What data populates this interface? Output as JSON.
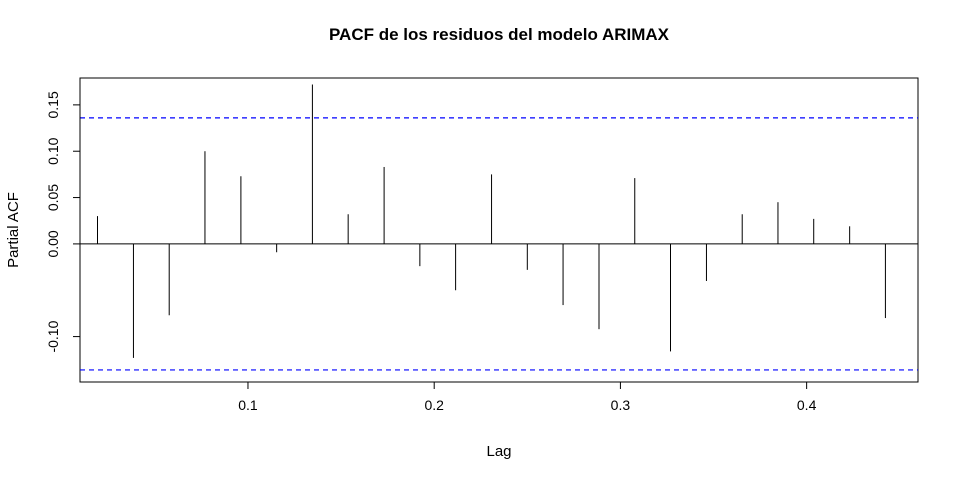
{
  "chart_data": {
    "type": "bar",
    "title": "PACF de los residuos del modelo ARIMAX",
    "xlabel": "Lag",
    "ylabel": "Partial ACF",
    "xlim": [
      0.0098,
      0.4598
    ],
    "ylim": [
      -0.149,
      0.179
    ],
    "x_ticks": [
      0.1,
      0.2,
      0.3,
      0.4
    ],
    "x_tick_labels": [
      "0.1",
      "0.2",
      "0.3",
      "0.4"
    ],
    "y_ticks": [
      -0.1,
      0.0,
      0.05,
      0.1,
      0.15
    ],
    "y_tick_labels": [
      "-0.10",
      "0.00",
      "0.05",
      "0.10",
      "0.15"
    ],
    "zero_line": 0,
    "confidence_limit": 0.136,
    "confidence_color": "#0000ff",
    "series": [
      {
        "lag": [
          0.0192,
          0.0385,
          0.0577,
          0.0769,
          0.0962,
          0.1154,
          0.1346,
          0.1538,
          0.1731,
          0.1923,
          0.2115,
          0.2308,
          0.25,
          0.2692,
          0.2885,
          0.3077,
          0.3269,
          0.3462,
          0.3654,
          0.3846,
          0.4038,
          0.4231,
          0.4423
        ],
        "values": [
          0.03,
          -0.123,
          -0.077,
          0.1,
          0.073,
          -0.009,
          0.172,
          0.032,
          0.083,
          -0.024,
          -0.05,
          0.075,
          -0.028,
          -0.066,
          -0.092,
          0.071,
          -0.116,
          -0.04,
          0.032,
          0.045,
          0.027,
          0.019,
          -0.08
        ]
      }
    ]
  }
}
